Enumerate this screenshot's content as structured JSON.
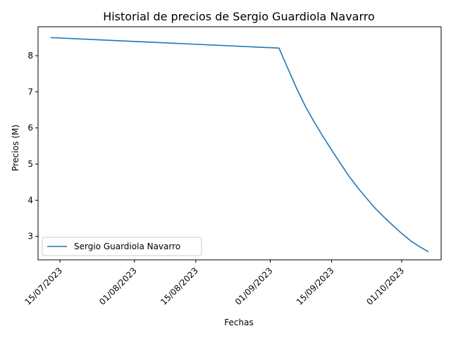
{
  "chart_data": {
    "type": "line",
    "title": "Historial de precios de Sergio Guardiola Navarro",
    "xlabel": "Fechas",
    "ylabel": "Precios (M)",
    "x_axis_type": "date",
    "xlim": [
      "2023-07-10",
      "2023-10-10"
    ],
    "ylim": [
      2.35,
      8.8
    ],
    "x_ticks": [
      {
        "date": "2023-07-15",
        "label": "15/07/2023"
      },
      {
        "date": "2023-08-01",
        "label": "01/08/2023"
      },
      {
        "date": "2023-08-15",
        "label": "15/08/2023"
      },
      {
        "date": "2023-09-01",
        "label": "01/09/2023"
      },
      {
        "date": "2023-09-15",
        "label": "15/09/2023"
      },
      {
        "date": "2023-10-01",
        "label": "01/10/2023"
      }
    ],
    "y_ticks": [
      {
        "value": 3,
        "label": "3"
      },
      {
        "value": 4,
        "label": "4"
      },
      {
        "value": 5,
        "label": "5"
      },
      {
        "value": 6,
        "label": "6"
      },
      {
        "value": 7,
        "label": "7"
      },
      {
        "value": 8,
        "label": "8"
      }
    ],
    "grid": false,
    "legend_position": "lower-left",
    "series": [
      {
        "name": "Sergio Guardiola Navarro",
        "color": "#1f77b4",
        "points": [
          {
            "x": "2023-07-13",
            "y": 8.5
          },
          {
            "x": "2023-09-03",
            "y": 8.21
          },
          {
            "x": "2023-09-05",
            "y": 7.65
          },
          {
            "x": "2023-09-07",
            "y": 7.1
          },
          {
            "x": "2023-09-09",
            "y": 6.6
          },
          {
            "x": "2023-09-11",
            "y": 6.17
          },
          {
            "x": "2023-09-13",
            "y": 5.77
          },
          {
            "x": "2023-09-15",
            "y": 5.39
          },
          {
            "x": "2023-09-17",
            "y": 5.02
          },
          {
            "x": "2023-09-19",
            "y": 4.66
          },
          {
            "x": "2023-09-21",
            "y": 4.34
          },
          {
            "x": "2023-09-23",
            "y": 4.05
          },
          {
            "x": "2023-09-25",
            "y": 3.77
          },
          {
            "x": "2023-09-27",
            "y": 3.53
          },
          {
            "x": "2023-09-29",
            "y": 3.3
          },
          {
            "x": "2023-10-01",
            "y": 3.08
          },
          {
            "x": "2023-10-03",
            "y": 2.88
          },
          {
            "x": "2023-10-05",
            "y": 2.72
          },
          {
            "x": "2023-10-07",
            "y": 2.58
          }
        ]
      }
    ]
  }
}
